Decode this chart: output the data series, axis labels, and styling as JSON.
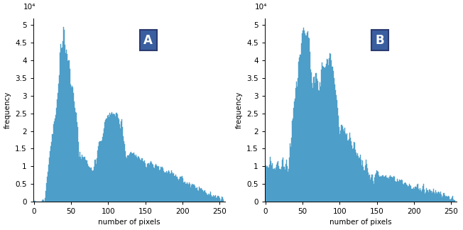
{
  "bar_color": "#4d9ec8",
  "label_A": "A",
  "label_B": "B",
  "xlabel": "number of pixels",
  "ylabel": "frequency",
  "ylim": [
    0,
    52000
  ],
  "xlim": [
    -1,
    257
  ],
  "yticks": [
    0,
    5000,
    10000,
    15000,
    20000,
    25000,
    30000,
    35000,
    40000,
    45000,
    50000
  ],
  "ytick_labels": [
    "0",
    "0.5",
    "1",
    "1.5",
    "2",
    "2.5",
    "3",
    "3.5",
    "4",
    "4.5",
    "5"
  ],
  "xticks": [
    0,
    50,
    100,
    150,
    200,
    250
  ],
  "exponent_label": "10⁴",
  "box_color": "#3a5fa0",
  "box_edge_color": "#2a3a70",
  "box_text_color": "white",
  "figsize": [
    6.52,
    3.24
  ],
  "dpi": 100
}
